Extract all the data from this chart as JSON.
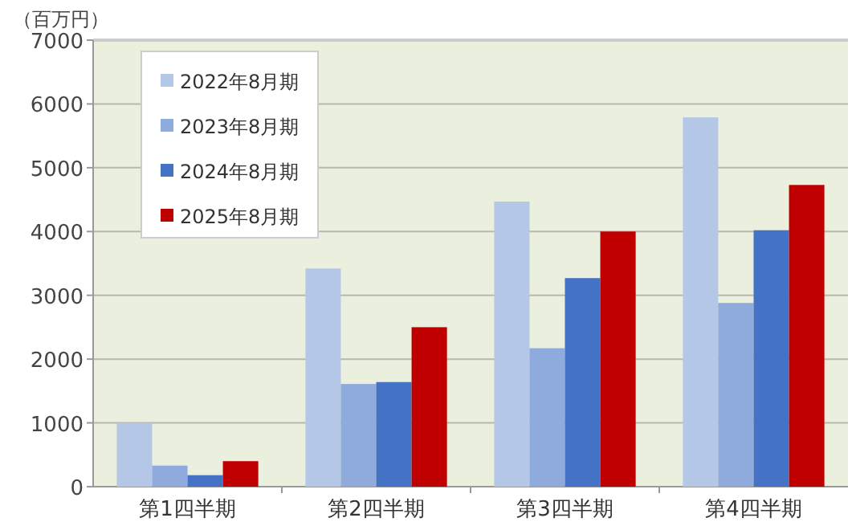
{
  "chart_data": {
    "type": "bar",
    "ylabel": "（百万円）",
    "categories": [
      "第1四半期",
      "第2四半期",
      "第3四半期",
      "第4四半期"
    ],
    "series": [
      {
        "name": "2022年8月期",
        "color": "#b4c7e7",
        "values": [
          1000,
          3420,
          4470,
          5790
        ]
      },
      {
        "name": "2023年8月期",
        "color": "#8faadc",
        "values": [
          330,
          1610,
          2170,
          2880
        ]
      },
      {
        "name": "2024年8月期",
        "color": "#4472c4",
        "values": [
          180,
          1640,
          3270,
          4020
        ]
      },
      {
        "name": "2025年8月期",
        "color": "#c00000",
        "values": [
          400,
          2500,
          4000,
          4730
        ]
      }
    ],
    "ylim": [
      0,
      7000
    ],
    "yticks": [
      0,
      1000,
      2000,
      3000,
      4000,
      5000,
      6000,
      7000
    ],
    "grid": "y",
    "legend": "top left"
  }
}
